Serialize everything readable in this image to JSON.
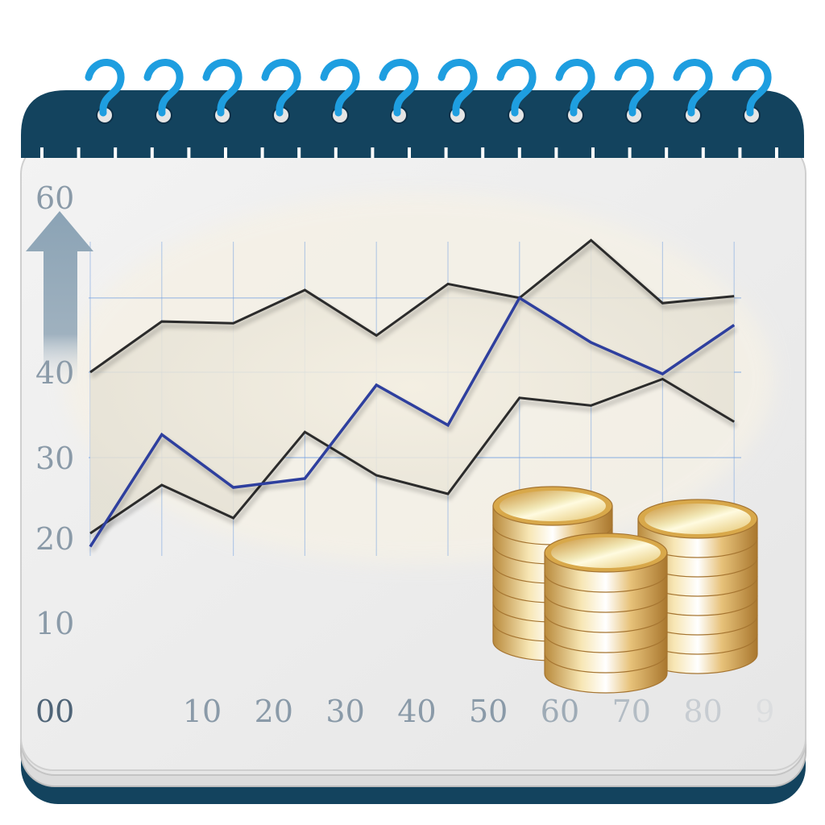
{
  "chart_data": {
    "type": "line",
    "y_tick_labels": [
      "60",
      "40",
      "30",
      "20",
      "10"
    ],
    "x_tick_labels": [
      "00",
      "10",
      "20",
      "30",
      "40",
      "50",
      "60",
      "70",
      "80",
      "9"
    ],
    "x": [
      0,
      10,
      20,
      30,
      40,
      50,
      60,
      70,
      80,
      90
    ],
    "series": [
      {
        "values": [
          40,
          45.8,
          45.6,
          49.4,
          44.2,
          50.1,
          48.5,
          55.1,
          47.9,
          48.7
        ],
        "color": "#2b2b2b"
      },
      {
        "values": [
          20.6,
          26.6,
          22.5,
          33,
          27.8,
          25.5,
          37,
          36.1,
          39.2,
          34.2
        ],
        "color": "#2b2b2b"
      },
      {
        "values": [
          19,
          32.7,
          26.3,
          27.4,
          38.5,
          33.8,
          48.5,
          43.4,
          39.8,
          45.4
        ],
        "color": "#2e3f9e"
      }
    ],
    "ylim": [
      10,
      60
    ],
    "grid": true,
    "fill_between_series": [
      0,
      1
    ]
  },
  "decor": {
    "binding_color": "#13435e",
    "ring_color": "#1e9ee0",
    "page_color": "#ebebeb",
    "grid_color": "#6f9ee0",
    "arrow_color": "#8ba3b5",
    "coin_gold": "#d8a84a",
    "icons": [
      "spiral-ring-icon",
      "up-arrow-icon",
      "coin-stack-icon"
    ]
  }
}
